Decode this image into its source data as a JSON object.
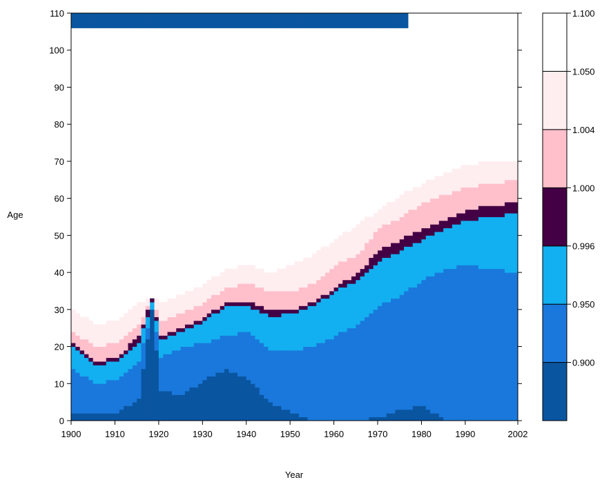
{
  "chart_data": {
    "type": "heatmap",
    "title": "",
    "xlabel": "Year",
    "ylabel": "Age",
    "xlim": [
      1900,
      2002
    ],
    "ylim": [
      0,
      110
    ],
    "x_ticks": [
      1900,
      1910,
      1920,
      1930,
      1940,
      1950,
      1960,
      1970,
      1980,
      1990,
      2002
    ],
    "y_ticks": [
      0,
      10,
      20,
      30,
      40,
      50,
      60,
      70,
      80,
      90,
      100,
      110
    ],
    "grid": false,
    "legend_placement": "right",
    "color_scale": {
      "breaks_labeled": [
        "0.900",
        "0.950",
        "0.996",
        "1.000",
        "1.004",
        "1.050",
        "1.100"
      ],
      "bins": [
        {
          "color": "#0a55a0",
          "range": "< 0.900"
        },
        {
          "color": "#1a78dc",
          "range": "0.900 – 0.950"
        },
        {
          "color": "#12b0f0",
          "range": "0.950 – 0.996"
        },
        {
          "color": "#440045",
          "range": "0.996 – 1.004"
        },
        {
          "color": "#ffc0cb",
          "range": "1.004 – 1.050"
        },
        {
          "color": "#ffeef0",
          "range": "1.050 – 1.100"
        },
        {
          "color": "#ffffff",
          "range": "> 1.100"
        }
      ]
    },
    "boundaries": {
      "description": "approximate upper age (years) of each colour region by calendar year",
      "years": [
        1900,
        1905,
        1910,
        1915,
        1918,
        1920,
        1925,
        1930,
        1935,
        1940,
        1945,
        1950,
        1955,
        1960,
        1965,
        1970,
        1975,
        1980,
        1985,
        1990,
        1995,
        2002
      ],
      "dark_blue_top": [
        2,
        2,
        2,
        6,
        30,
        8,
        7,
        11,
        14,
        11,
        5,
        2,
        0,
        0,
        0,
        1,
        3,
        4,
        0,
        0,
        0,
        0
      ],
      "blue_top": [
        14,
        10,
        11,
        16,
        30,
        17,
        20,
        21,
        23,
        24,
        19,
        19,
        20,
        23,
        26,
        31,
        34,
        38,
        41,
        42,
        41,
        40
      ],
      "light_blue_top": [
        20,
        15,
        16,
        21,
        32,
        22,
        24,
        27,
        31,
        31,
        28,
        29,
        31,
        35,
        38,
        43,
        46,
        49,
        52,
        54,
        55,
        56
      ],
      "purple_top": [
        21,
        16,
        17,
        23,
        33,
        23,
        25,
        28,
        32,
        32,
        30,
        30,
        32,
        36,
        40,
        46,
        49,
        52,
        54,
        57,
        58,
        59
      ],
      "pink_top": [
        24,
        20,
        21,
        26,
        33,
        27,
        29,
        32,
        36,
        37,
        35,
        35,
        37,
        42,
        45,
        52,
        55,
        59,
        61,
        63,
        64,
        65
      ],
      "light_pink_top": [
        30,
        26,
        27,
        32,
        33,
        32,
        34,
        37,
        41,
        42,
        40,
        42,
        45,
        49,
        53,
        57,
        61,
        64,
        67,
        69,
        70,
        70
      ],
      "top_band_bottom": 106
    }
  }
}
